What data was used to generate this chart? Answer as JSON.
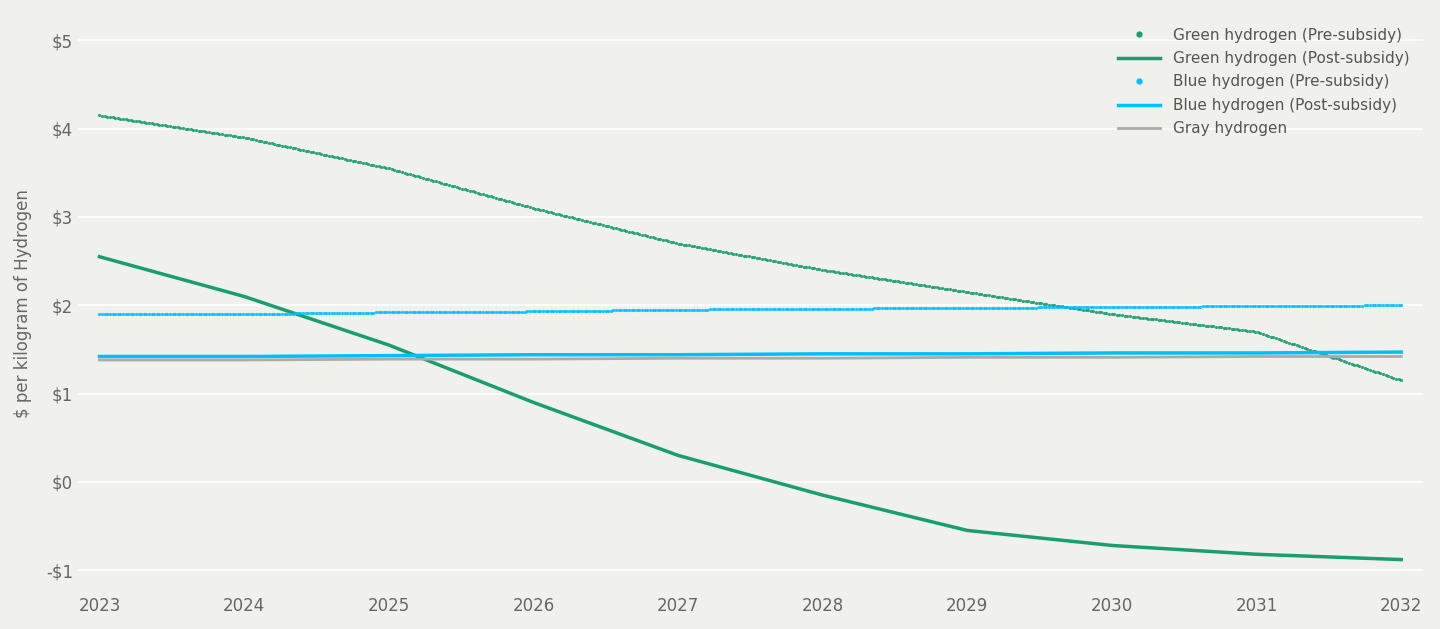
{
  "years": [
    2023,
    2024,
    2025,
    2026,
    2027,
    2028,
    2029,
    2030,
    2031,
    2032
  ],
  "green_pre_subsidy": [
    4.15,
    3.9,
    3.55,
    3.1,
    2.7,
    2.4,
    2.15,
    1.9,
    1.7,
    1.15
  ],
  "green_post_subsidy": [
    2.55,
    2.1,
    1.55,
    0.9,
    0.3,
    -0.15,
    -0.55,
    -0.72,
    -0.82,
    -0.88
  ],
  "blue_pre_subsidy": [
    1.9,
    1.9,
    1.92,
    1.93,
    1.95,
    1.96,
    1.97,
    1.98,
    1.99,
    2.0
  ],
  "blue_post_subsidy": [
    1.42,
    1.42,
    1.43,
    1.44,
    1.44,
    1.45,
    1.45,
    1.46,
    1.46,
    1.47
  ],
  "gray_hydrogen": [
    1.38,
    1.38,
    1.39,
    1.39,
    1.4,
    1.4,
    1.41,
    1.41,
    1.42,
    1.42
  ],
  "green_color": "#1a9e6e",
  "blue_color": "#00bfff",
  "gray_color": "#aaaaaa",
  "ylabel": "$ per kilogram of Hydrogen",
  "ylim": [
    -1.25,
    5.3
  ],
  "yticks": [
    -1,
    0,
    1,
    2,
    3,
    4,
    5
  ],
  "ytick_labels": [
    "-$1",
    "$0",
    "$1",
    "$2",
    "$3",
    "$4",
    "$5"
  ],
  "background_color": "#f0f0ec",
  "legend_labels": [
    "Green hydrogen (Pre-subsidy)",
    "Green hydrogen (Post-subsidy)",
    "Blue hydrogen (Pre-subsidy)",
    "Blue hydrogen (Post-subsidy)",
    "Gray hydrogen"
  ]
}
